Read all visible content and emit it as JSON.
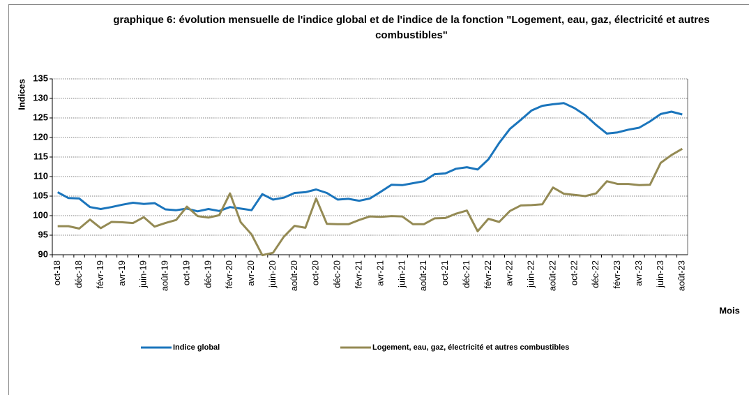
{
  "chart_data": {
    "type": "line",
    "title": "graphique 6: évolution mensuelle de l'indice global et de l'indice de la fonction \"Logement, eau, gaz, électricité et autres combustibles\"",
    "y_label": "Indices",
    "x_label": "Mois",
    "categories": [
      "oct-18",
      null,
      "déc-18",
      null,
      "févr-19",
      null,
      "avr-19",
      null,
      "juin-19",
      null,
      "août-19",
      null,
      "oct-19",
      null,
      "déc-19",
      null,
      "févr-20",
      null,
      "avr-20",
      null,
      "juin-20",
      null,
      "août-20",
      null,
      "oct-20",
      null,
      "déc-20",
      null,
      "févr-21",
      null,
      "avr-21",
      null,
      "juin-21",
      null,
      "août-21",
      null,
      "oct-21",
      null,
      "déc-21",
      null,
      "févr-22",
      null,
      "avr-22",
      null,
      "juin-22",
      null,
      "août-22",
      null,
      "oct-22",
      null,
      "déc-22",
      null,
      "févr-23",
      null,
      "avr-23",
      null,
      "juin-23",
      null,
      "août-23"
    ],
    "series": [
      {
        "name": "Indice global",
        "color": "#1b75bc",
        "values": [
          106,
          104.5,
          104.4,
          102.2,
          101.7,
          102.2,
          102.8,
          103.3,
          103,
          103.2,
          101.6,
          101.4,
          101.8,
          101.1,
          101.7,
          101.2,
          102.2,
          101.8,
          101.4,
          105.5,
          104.1,
          104.6,
          105.8,
          106,
          106.7,
          105.8,
          104.1,
          104.3,
          103.8,
          104.4,
          106.1,
          107.9,
          107.8,
          108.3,
          108.8,
          110.6,
          110.8,
          112,
          112.4,
          111.8,
          114.4,
          118.6,
          122.2,
          124.5,
          126.9,
          128.1,
          128.5,
          128.8,
          127.5,
          125.7,
          123.2,
          121,
          121.3,
          122,
          122.5,
          124.1,
          126,
          126.6,
          125.9
        ]
      },
      {
        "name": "Logement, eau, gaz, électricité et autres combustibles",
        "color": "#948a54",
        "values": [
          97.3,
          97.3,
          96.7,
          99,
          96.8,
          98.4,
          98.3,
          98.1,
          99.6,
          97.2,
          98.1,
          98.9,
          102.3,
          99.9,
          99.5,
          100.1,
          105.7,
          98.3,
          95.2,
          89.9,
          90.5,
          94.6,
          97.4,
          96.9,
          104.4,
          97.9,
          97.8,
          97.8,
          98.9,
          99.8,
          99.7,
          99.9,
          99.8,
          97.8,
          97.8,
          99.3,
          99.4,
          100.5,
          101.3,
          96,
          99.2,
          98.4,
          101.2,
          102.6,
          102.7,
          102.9,
          107.2,
          105.6,
          105.3,
          105,
          105.7,
          108.8,
          108.1,
          108.1,
          107.8,
          107.9,
          113.5,
          115.5,
          117.1
        ]
      }
    ],
    "ylim": [
      90,
      135
    ],
    "yticks": [
      90,
      95,
      100,
      105,
      110,
      115,
      120,
      125,
      130,
      135
    ],
    "grid": true
  }
}
